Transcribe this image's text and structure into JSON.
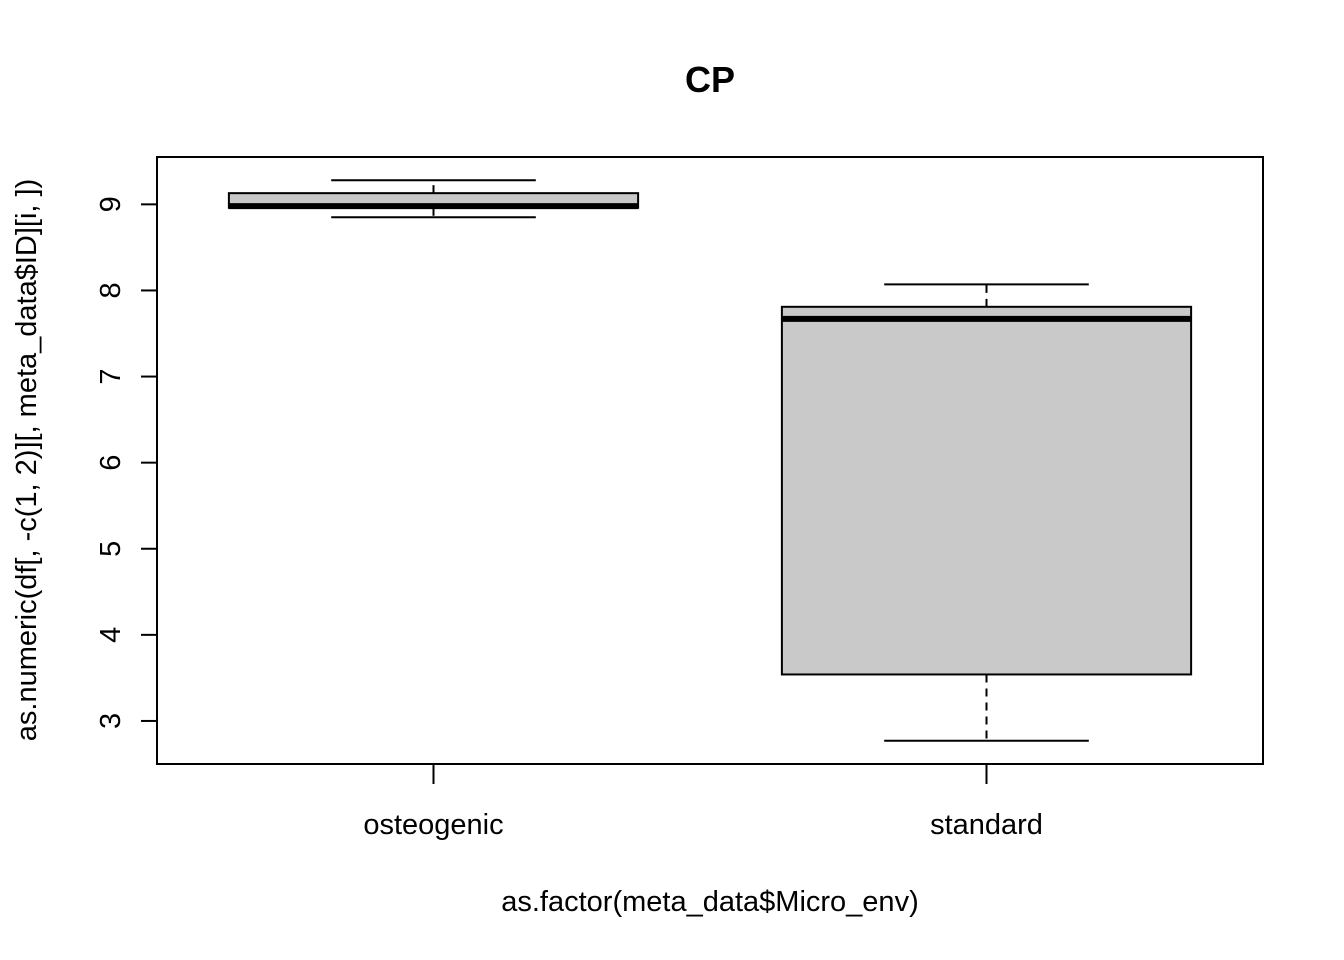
{
  "chart_data": {
    "type": "box",
    "title": "CP",
    "xlabel": "as.factor(meta_data$Micro_env)",
    "ylabel": "as.numeric(df[, -c(1, 2)][, meta_data$ID][i, ])",
    "ylim": [
      2.5,
      9.55
    ],
    "yticks": [
      "3",
      "4",
      "5",
      "6",
      "7",
      "8",
      "9"
    ],
    "categories": [
      "osteogenic",
      "standard"
    ],
    "boxes": [
      {
        "category": "osteogenic",
        "whisker_low": 8.85,
        "q1": 8.96,
        "median": 8.98,
        "q3": 9.13,
        "whisker_high": 9.28
      },
      {
        "category": "standard",
        "whisker_low": 2.77,
        "q1": 3.54,
        "median": 7.67,
        "q3": 7.81,
        "whisker_high": 8.07
      }
    ],
    "box_fill": "#c9c9c9",
    "grid": false,
    "legend": "none"
  }
}
